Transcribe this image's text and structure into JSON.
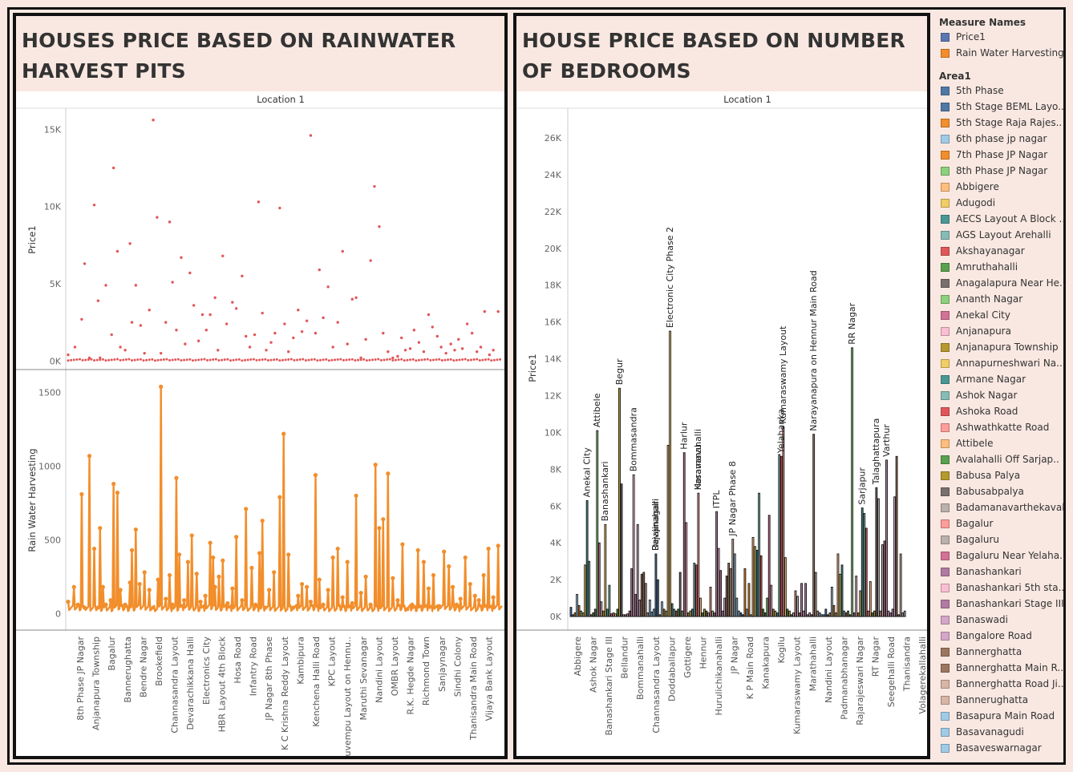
{
  "left_panel": {
    "title": "HOUSES PRICE BASED ON RAINWATER HARVEST PITS"
  },
  "right_panel": {
    "title": "HOUSE PRICE BASED ON NUMBER OF BEDROOMS"
  },
  "legend": {
    "measure_names_title": "Measure Names",
    "measure_names": [
      {
        "label": "Price1",
        "color": "#5b77b0"
      },
      {
        "label": "Rain Water Harvesting",
        "color": "#f28e2b"
      }
    ],
    "area_title": "Area1",
    "areas": [
      {
        "label": "5th Phase",
        "color": "#4e79a7"
      },
      {
        "label": "5th Stage BEML Layo..",
        "color": "#4e79a7"
      },
      {
        "label": "5th Stage Raja Rajes..",
        "color": "#f28e2b"
      },
      {
        "label": "6th phase jp nagar",
        "color": "#a0cbe8"
      },
      {
        "label": "7th Phase JP Nagar",
        "color": "#f28e2b"
      },
      {
        "label": "8th Phase JP Nagar",
        "color": "#8cd17d"
      },
      {
        "label": "Abbigere",
        "color": "#ffbe7d"
      },
      {
        "label": "Adugodi",
        "color": "#f1ce63"
      },
      {
        "label": "AECS Layout A Block ..",
        "color": "#499894"
      },
      {
        "label": "AGS Layout Arehalli",
        "color": "#86bcb6"
      },
      {
        "label": "Akshayanagar",
        "color": "#e15759"
      },
      {
        "label": "Amruthahalli",
        "color": "#59a14f"
      },
      {
        "label": "Anagalapura Near He..",
        "color": "#79706e"
      },
      {
        "label": "Ananth Nagar",
        "color": "#8cd17d"
      },
      {
        "label": "Anekal City",
        "color": "#d37295"
      },
      {
        "label": "Anjanapura",
        "color": "#fabfd2"
      },
      {
        "label": "Anjanapura Township",
        "color": "#b6992d"
      },
      {
        "label": "Annapurneshwari Na..",
        "color": "#f1ce63"
      },
      {
        "label": "Armane Nagar",
        "color": "#499894"
      },
      {
        "label": "Ashok Nagar",
        "color": "#86bcb6"
      },
      {
        "label": "Ashoka Road",
        "color": "#e15759"
      },
      {
        "label": "Ashwathkatte Road",
        "color": "#ff9d9a"
      },
      {
        "label": "Attibele",
        "color": "#ffbe7d"
      },
      {
        "label": "Avalahalli Off Sarjap..",
        "color": "#59a14f"
      },
      {
        "label": "Babusa Palya",
        "color": "#b6992d"
      },
      {
        "label": "Babusabpalya",
        "color": "#79706e"
      },
      {
        "label": "Badamanavarthekaval",
        "color": "#bab0ac"
      },
      {
        "label": "Bagalur",
        "color": "#ff9d9a"
      },
      {
        "label": "Bagaluru",
        "color": "#bab0ac"
      },
      {
        "label": "Bagaluru Near Yelaha..",
        "color": "#d37295"
      },
      {
        "label": "Banashankari",
        "color": "#b07aa1"
      },
      {
        "label": "Banashankari 5th sta..",
        "color": "#fabfd2"
      },
      {
        "label": "Banashankari Stage III",
        "color": "#b07aa1"
      },
      {
        "label": "Banaswadi",
        "color": "#d4a6c8"
      },
      {
        "label": "Bangalore Road",
        "color": "#d4a6c8"
      },
      {
        "label": "Bannerghatta",
        "color": "#9d7660"
      },
      {
        "label": "Bannerghatta Main R..",
        "color": "#9d7660"
      },
      {
        "label": "Bannerghatta Road Ji..",
        "color": "#d7b5a6"
      },
      {
        "label": "Bannerughatta",
        "color": "#d7b5a6"
      },
      {
        "label": "Basapura Main Road",
        "color": "#a0cbe8"
      },
      {
        "label": "Basavanagudi",
        "color": "#a0cbe8"
      },
      {
        "label": "Basaveswarnagar",
        "color": "#a0cbe8"
      }
    ]
  },
  "chart_data": [
    {
      "type": "scatter",
      "title": "Location 1",
      "ylabel": "Price1",
      "ylim": [
        -400,
        16000
      ],
      "yticks": [
        0,
        5000,
        10000,
        15000
      ],
      "ytick_labels": [
        "0K",
        "5K",
        "10K",
        "15K"
      ],
      "color": "#e15759",
      "x_index": [
        0,
        7,
        14,
        17,
        22,
        27,
        31,
        33,
        39,
        45,
        47,
        51,
        54,
        59,
        64,
        66,
        70,
        75,
        79,
        84,
        88,
        92,
        96,
        101,
        105,
        108,
        112,
        117,
        121,
        126,
        130,
        135,
        139,
        143,
        147,
        152,
        155,
        160,
        164,
        170,
        174,
        180,
        184,
        188,
        193,
        197,
        201,
        205,
        210,
        214,
        219,
        224,
        228,
        233,
        238,
        242,
        247,
        251,
        256,
        260,
        264,
        269,
        274,
        279,
        284,
        289,
        294,
        298,
        303,
        308,
        313,
        317,
        322,
        326,
        331,
        336,
        341,
        345,
        349,
        354,
        358,
        363,
        368,
        373,
        377,
        382,
        386,
        391,
        396,
        400,
        404,
        408,
        413,
        418,
        423,
        427,
        431,
        436,
        440,
        445
      ],
      "y": [
        400,
        900,
        2700,
        6300,
        200,
        10100,
        3900,
        200,
        4900,
        1700,
        12500,
        7100,
        900,
        700,
        7600,
        2500,
        4900,
        2300,
        500,
        3300,
        15600,
        9300,
        500,
        2500,
        9000,
        5100,
        2000,
        6700,
        1100,
        5700,
        3600,
        1300,
        3000,
        2000,
        3000,
        4100,
        700,
        6800,
        2400,
        3800,
        3400,
        5500,
        1600,
        900,
        1700,
        10300,
        3100,
        700,
        1200,
        1800,
        9900,
        2400,
        600,
        1500,
        3300,
        1900,
        2600,
        14600,
        1800,
        5900,
        2800,
        4800,
        900,
        2500,
        7100,
        1100,
        4000,
        4100,
        200,
        1400,
        6500,
        11300,
        8700,
        1800,
        600,
        200,
        300,
        1500,
        700,
        800,
        2000,
        1200,
        600,
        3000,
        2200,
        1600,
        900,
        500,
        1100,
        700,
        1400,
        800,
        2400,
        1800,
        600,
        900,
        3200,
        400,
        700,
        3200
      ]
    },
    {
      "type": "line",
      "ylabel": "Rain Water Harvesting",
      "ylim": [
        -80,
        1580
      ],
      "yticks": [
        0,
        500,
        1000,
        1500
      ],
      "color": "#f28e2b",
      "x_index": [
        0,
        6,
        10,
        14,
        17,
        22,
        27,
        31,
        33,
        36,
        39,
        44,
        47,
        51,
        54,
        59,
        64,
        66,
        70,
        74,
        79,
        84,
        88,
        93,
        96,
        101,
        105,
        108,
        112,
        115,
        120,
        124,
        128,
        133,
        137,
        142,
        147,
        150,
        152,
        156,
        160,
        165,
        170,
        174,
        180,
        184,
        190,
        194,
        198,
        201,
        204,
        208,
        213,
        219,
        223,
        228,
        233,
        238,
        242,
        247,
        251,
        256,
        260,
        264,
        269,
        274,
        279,
        284,
        289,
        294,
        298,
        303,
        308,
        313,
        318,
        322,
        326,
        331,
        336,
        341,
        346,
        351,
        356,
        362,
        368,
        373,
        378,
        384,
        389,
        394,
        398,
        402,
        406,
        411,
        416,
        421,
        425,
        430,
        435,
        440,
        445
      ],
      "y": [
        80,
        180,
        60,
        810,
        40,
        1070,
        440,
        40,
        580,
        180,
        60,
        90,
        880,
        820,
        160,
        60,
        210,
        430,
        570,
        200,
        280,
        160,
        40,
        230,
        1540,
        100,
        260,
        60,
        920,
        400,
        90,
        350,
        530,
        270,
        80,
        120,
        480,
        380,
        180,
        250,
        360,
        70,
        170,
        520,
        90,
        710,
        310,
        60,
        410,
        630,
        40,
        160,
        280,
        790,
        1220,
        400,
        40,
        120,
        200,
        180,
        80,
        940,
        230,
        60,
        160,
        380,
        440,
        110,
        350,
        70,
        800,
        140,
        250,
        60,
        1010,
        580,
        640,
        950,
        240,
        90,
        470,
        30,
        60,
        430,
        350,
        170,
        260,
        50,
        420,
        320,
        180,
        60,
        100,
        380,
        200,
        120,
        90,
        260,
        440,
        110,
        460
      ],
      "x_tick_labels": [
        "8th Phase JP Nagar",
        "Anjanapura Township",
        "Bagalur",
        "Bannerughatta",
        "Bendre Nagar",
        "Brookefield",
        "Channasandra Layout",
        "Devarachikkana Halli",
        "Electronics City",
        "HBR Layout 4th Block",
        "Hosa Road",
        "Infantry Road",
        "JP Nagar 8th Phase",
        "K C Krishna Reddy Layout",
        "Kambipura",
        "Kenchena Halli Road",
        "KPC Layout",
        "Kuvempu Layout on Hennu..",
        "Maruthi Sevanagar",
        "Nandini Layout",
        "OMBR Layout",
        "R.K. Hegde Nagar",
        "Richmond Town",
        "Sanjaynagar",
        "Sindhi Colony",
        "Thanisandra Main Road",
        "Vijaya Bank Layout"
      ],
      "n_points": 450
    },
    {
      "type": "bar",
      "title": "Location 1",
      "ylabel": "Price1",
      "ylim": [
        -300,
        27000
      ],
      "yticks": [
        0,
        2000,
        4000,
        6000,
        8000,
        10000,
        12000,
        14000,
        16000,
        18000,
        20000,
        22000,
        24000,
        26000
      ],
      "ytick_labels": [
        "0K",
        "2K",
        "4K",
        "6K",
        "8K",
        "10K",
        "12K",
        "14K",
        "16K",
        "18K",
        "20K",
        "22K",
        "24K",
        "26K"
      ],
      "n_bars": 176,
      "bar_values": [
        500,
        100,
        200,
        1200,
        600,
        300,
        200,
        2800,
        6300,
        3000,
        100,
        200,
        400,
        10100,
        4000,
        800,
        300,
        5000,
        400,
        1700,
        150,
        200,
        150,
        400,
        12400,
        7200,
        100,
        100,
        150,
        300,
        2600,
        7700,
        1200,
        5000,
        900,
        2300,
        2400,
        1800,
        200,
        900,
        250,
        400,
        3400,
        2000,
        100,
        800,
        400,
        300,
        9300,
        15500,
        700,
        400,
        300,
        400,
        2400,
        300,
        8900,
        5100,
        200,
        300,
        400,
        2900,
        2800,
        6700,
        1000,
        200,
        400,
        300,
        200,
        1600,
        300,
        200,
        5700,
        3700,
        2500,
        300,
        1000,
        2200,
        2900,
        2600,
        4200,
        3400,
        1000,
        300,
        200,
        100,
        2600,
        400,
        1800,
        100,
        4300,
        3800,
        3600,
        6700,
        3300,
        400,
        200,
        1000,
        5500,
        1700,
        400,
        300,
        200,
        8800,
        8700,
        10300,
        3200,
        400,
        300,
        100,
        200,
        1400,
        1100,
        200,
        1800,
        300,
        1800,
        100,
        200,
        100,
        9900,
        2400,
        300,
        200,
        100,
        100,
        400,
        100,
        200,
        1600,
        600,
        200,
        3400,
        2300,
        2800,
        300,
        200,
        300,
        100,
        14600,
        200,
        2200,
        200,
        1400,
        5900,
        5600,
        4800,
        300,
        1900,
        200,
        300,
        7000,
        6400,
        300,
        3900,
        4100,
        8500,
        300,
        200,
        400,
        6500,
        8700,
        100,
        3400,
        200,
        300
      ],
      "x_tick_labels": [
        "Abbigere",
        "Ashok Nagar",
        "Banashankari Stage III",
        "Bellandur",
        "Bommanahalli",
        "Channasandra Layout",
        "Doddaballapur",
        "Gottigere",
        "Hennur",
        "Hurulichikanahalli",
        "JP Nagar",
        "K P Main Road",
        "Kanakapura",
        "Kogilu",
        "Kumaraswamy Layout",
        "Marathahalli",
        "Nandini Layout",
        "Padmanabhanagar",
        "Rajarajeswari Nagar",
        "RT Nagar",
        "Seegehalli Road",
        "Thanisandra",
        "Volagerekallahalli"
      ],
      "annotations": [
        {
          "label": "Anekal City",
          "value": 6300
        },
        {
          "label": "Attibele",
          "value": 10100
        },
        {
          "label": "Banashankari",
          "value": 5000
        },
        {
          "label": "Begur",
          "value": 12400
        },
        {
          "label": "Bommasandra",
          "value": 7700
        },
        {
          "label": "Devanahalli",
          "value": 3400
        },
        {
          "label": "Electronic City Phase 2",
          "value": 15500
        },
        {
          "label": "Harlur",
          "value": 8900
        },
        {
          "label": "Horamavu",
          "value": 6700
        },
        {
          "label": "ITPL",
          "value": 5700
        },
        {
          "label": "JP Nagar Phase 8",
          "value": 4200
        },
        {
          "label": "Kasavanahalli",
          "value": 6700
        },
        {
          "label": "Kumaraswamy Layout",
          "value": 10300
        },
        {
          "label": "Narayanapura on Hennur Main Road",
          "value": 9900
        },
        {
          "label": "Rajajinagar",
          "value": 3400
        },
        {
          "label": "RR Nagar",
          "value": 14600
        },
        {
          "label": "Sarjapur",
          "value": 5900
        },
        {
          "label": "Talaghattapura",
          "value": 7000
        },
        {
          "label": "Varthur",
          "value": 8500
        },
        {
          "label": "Yelahanka",
          "value": 8700
        }
      ]
    }
  ]
}
